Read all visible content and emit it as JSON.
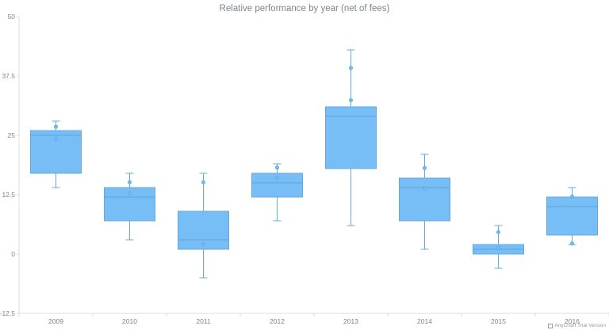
{
  "chart_data": {
    "type": "boxplot",
    "title": "Relative performance by year (net of fees)",
    "categories": [
      "2009",
      "2010",
      "2011",
      "2012",
      "2013",
      "2014",
      "2015",
      "2016"
    ],
    "ylim": [
      -12.5,
      50
    ],
    "yticks": [
      "-12.5",
      "0",
      "12.5",
      "25",
      "37.5",
      "50"
    ],
    "ytick_values": [
      -12.5,
      0,
      12.5,
      25,
      37.5,
      50
    ],
    "boxes": [
      {
        "low": 14,
        "q1": 17,
        "median": 25,
        "q3": 26,
        "high": 28,
        "outliers": [
          26.8,
          24.2
        ]
      },
      {
        "low": 3,
        "q1": 7,
        "median": 12,
        "q3": 14,
        "high": 17,
        "outliers": [
          15.1,
          12.8
        ]
      },
      {
        "low": -5,
        "q1": 1,
        "median": 3,
        "q3": 9,
        "high": 17,
        "outliers": [
          15.1,
          2.1
        ]
      },
      {
        "low": 7,
        "q1": 12,
        "median": 15,
        "q3": 17,
        "high": 19,
        "outliers": [
          18.2,
          16.1
        ]
      },
      {
        "low": 6,
        "q1": 18,
        "median": 29,
        "q3": 31,
        "high": 43,
        "outliers": [
          39.2,
          32.4
        ]
      },
      {
        "low": 1,
        "q1": 7,
        "median": 14,
        "q3": 16,
        "high": 21,
        "outliers": [
          18.1,
          13.8
        ]
      },
      {
        "low": -3,
        "q1": 0,
        "median": 1,
        "q3": 2,
        "high": 6,
        "outliers": [
          4.6,
          1.3
        ]
      },
      {
        "low": 2,
        "q1": 4,
        "median": 10,
        "q3": 12,
        "high": 14,
        "outliers": [
          12.1,
          2.2
        ]
      }
    ],
    "colors": {
      "box_fill": "#78bef6",
      "box_stroke": "#64a8e0",
      "whisker": "#64a8e0",
      "axis": "#d9dde0",
      "text": "#7c868e"
    },
    "grid": false,
    "legend": "none"
  },
  "credit_text": "AnyChart Trial Version"
}
